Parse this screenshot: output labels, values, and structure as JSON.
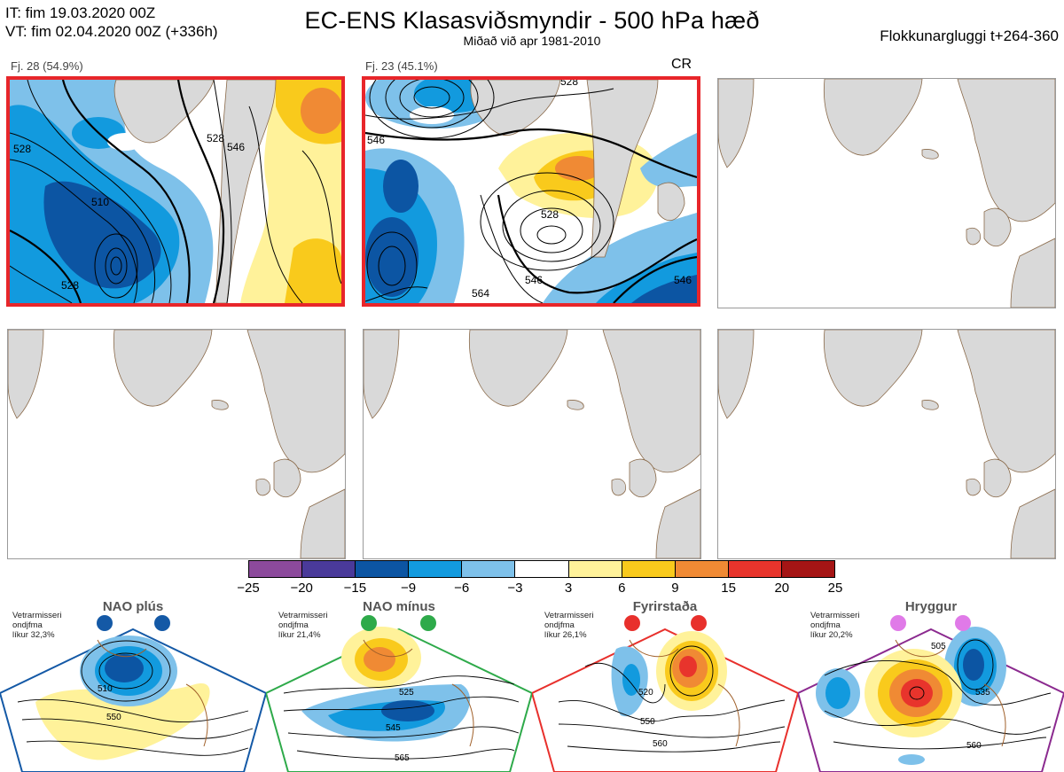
{
  "header": {
    "it_line": "IT: fim 19.03.2020 00Z",
    "vt_line": "VT: fim 02.04.2020 00Z  (+336h)",
    "title": "EC-ENS Klasasviðsmyndir - 500 hPa hæð",
    "subtitle": "Miðað við apr 1981-2010",
    "window": "Flokkunargluggi t+264-360"
  },
  "panels": [
    {
      "label": "Fj. 28 (54.9%)",
      "selected": true,
      "tag": "",
      "contours": [
        "528",
        "510",
        "528",
        "528",
        "546"
      ]
    },
    {
      "label": "Fj. 23 (45.1%)",
      "selected": true,
      "tag": "CR",
      "contours": [
        "528",
        "546",
        "528",
        "546",
        "564",
        "546"
      ]
    }
  ],
  "colorbar": {
    "colors": [
      "#8c4a9c",
      "#4a3a9a",
      "#0c55a3",
      "#129ade",
      "#7ec1ea",
      "#ffffff",
      "#fff29a",
      "#f9ca1c",
      "#f08a34",
      "#e8342c",
      "#a51515"
    ],
    "ticks": [
      "−25",
      "−20",
      "−15",
      "−9",
      "−6",
      "−3",
      "3",
      "6",
      "9",
      "15",
      "20",
      "25"
    ]
  },
  "regimes": [
    {
      "name": "NAO plús",
      "note": [
        "Vetrarmisseri",
        "ondjfma",
        "líkur 32,3%"
      ],
      "color": "#1459a6",
      "contours": [
        "510",
        "550"
      ]
    },
    {
      "name": "NAO mínus",
      "note": [
        "Vetrarmisseri",
        "ondjfma",
        "líkur 21,4%"
      ],
      "color": "#2eaa4a",
      "contours": [
        "525",
        "545",
        "565"
      ]
    },
    {
      "name": "Fyrirstaða",
      "note": [
        "Vetrarmisseri",
        "ondjfma",
        "líkur 26,1%"
      ],
      "color": "#e8302c",
      "contours": [
        "520",
        "550",
        "560"
      ]
    },
    {
      "name": "Hryggur",
      "note": [
        "Vetrarmisseri",
        "ondjfma",
        "líkur 20,2%"
      ],
      "color": "#8b2a8f",
      "contours": [
        "505",
        "535",
        "560"
      ]
    }
  ]
}
